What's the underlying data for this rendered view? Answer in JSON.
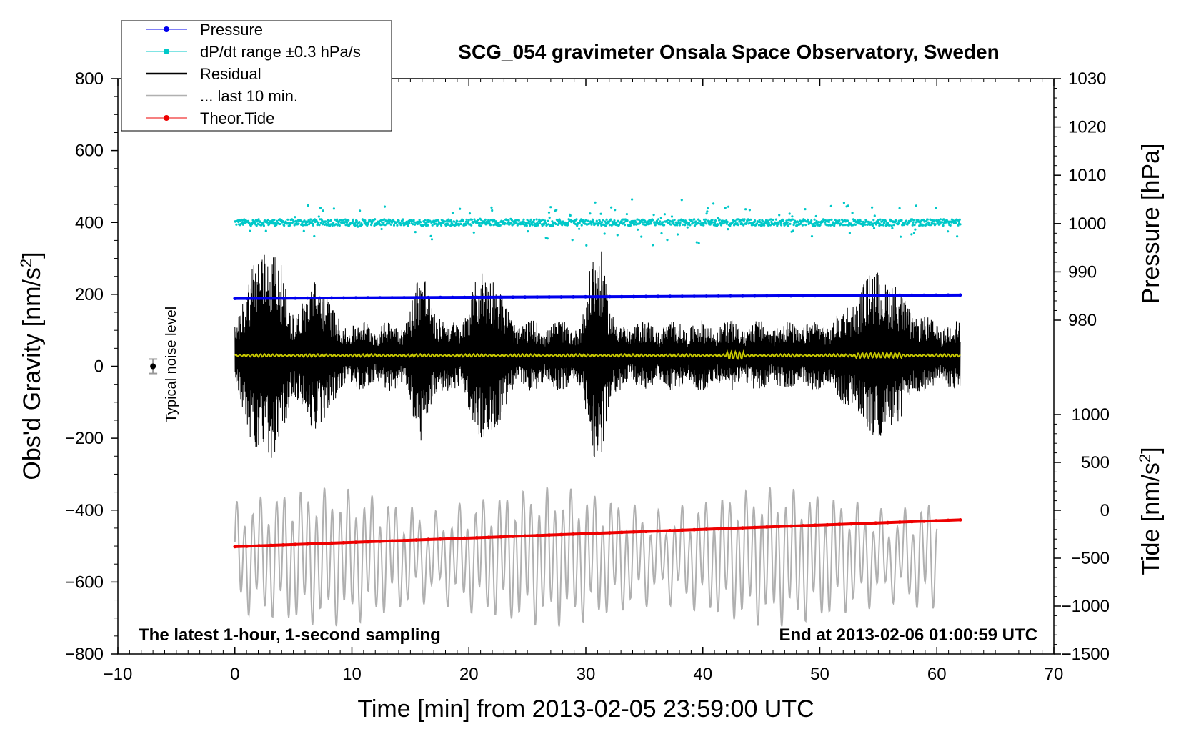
{
  "chart_data": {
    "type": "line",
    "title": "SCG_054 gravimeter Onsala Space Observatory, Sweden",
    "xlabel": "Time [min] from 2013-02-05 23:59:00 UTC",
    "ylabel_left_main": "Obs'd Gravity [nm/s",
    "ylabel_left_sup": "2",
    "ylabel_left_end": "]",
    "ylabel_right_pressure": "Pressure [hPa]",
    "ylabel_right_tide_main": "Tide [nm/s",
    "ylabel_right_tide_sup": "2",
    "ylabel_right_tide_end": "]",
    "xlim": [
      -10,
      70
    ],
    "ylim": [
      -800,
      800
    ],
    "pressure_lim": [
      980,
      1030
    ],
    "tide_lim": [
      -1500,
      1000
    ],
    "x_ticks": [
      -10,
      0,
      10,
      20,
      30,
      40,
      50,
      60,
      70
    ],
    "x_tick_labels": [
      "−10",
      "0",
      "10",
      "20",
      "30",
      "40",
      "50",
      "60",
      "70"
    ],
    "y_ticks": [
      -800,
      -600,
      -400,
      -200,
      0,
      200,
      400,
      600,
      800
    ],
    "y_tick_labels": [
      "−800",
      "−600",
      "−400",
      "−200",
      "0",
      "200",
      "400",
      "600",
      "800"
    ],
    "pressure_ticks": [
      980,
      990,
      1000,
      1010,
      1020,
      1030
    ],
    "pressure_tick_labels": [
      "980",
      "990",
      "1000",
      "1010",
      "1020",
      "1030"
    ],
    "tide_ticks": [
      -1500,
      -1000,
      -500,
      0,
      500,
      1000
    ],
    "tide_tick_labels": [
      "−1500",
      "−1000",
      "−500",
      "0",
      "500",
      "1000"
    ],
    "legend": [
      {
        "label": "Pressure",
        "color": "#0000ee",
        "marker": true
      },
      {
        "label": "dP/dt range ±0.3 hPa/s",
        "color": "#00c8c8",
        "marker": true
      },
      {
        "label": "Residual",
        "color": "#000000",
        "marker": false
      },
      {
        "label": "... last 10 min.",
        "color": "#b0b0b0",
        "marker": false
      },
      {
        "label": "Theor.Tide",
        "color": "#ee0000",
        "marker": true
      }
    ],
    "annotations": {
      "noise": "Typical noise level",
      "bottom_left": "The latest 1-hour, 1-second sampling",
      "bottom_right": "End at 2013-02-06 01:00:59 UTC"
    },
    "noise_marker": {
      "x": -7,
      "y": 0,
      "err": 20
    },
    "series": [
      {
        "name": "Pressure",
        "color": "#0000ee",
        "axis": "pressure",
        "x_start": 0,
        "x_end": 62,
        "y_start": 984.5,
        "y_end": 985.2
      },
      {
        "name": "dP/dt range",
        "color": "#00c8c8",
        "axis": "gravity",
        "x_start": 0,
        "x_end": 62,
        "center": 400,
        "spread": 60
      },
      {
        "name": "Residual",
        "color": "#000000",
        "axis": "gravity",
        "x_start": 0,
        "x_end": 62,
        "center": 30,
        "amplitude_max": 290
      },
      {
        "name": "Residual smoothed",
        "color": "#c8c800",
        "axis": "gravity",
        "x_start": 0,
        "x_end": 62,
        "center": 30
      },
      {
        "name": "... last 10 min.",
        "color": "#b0b0b0",
        "axis": "gravity",
        "x_start": 0,
        "x_end": 60,
        "center": -530,
        "amplitude_max": 150
      },
      {
        "name": "Theor.Tide",
        "color": "#ee0000",
        "axis": "tide",
        "x_start": 0,
        "x_end": 62,
        "y_start": -380,
        "y_end": -100
      }
    ]
  }
}
